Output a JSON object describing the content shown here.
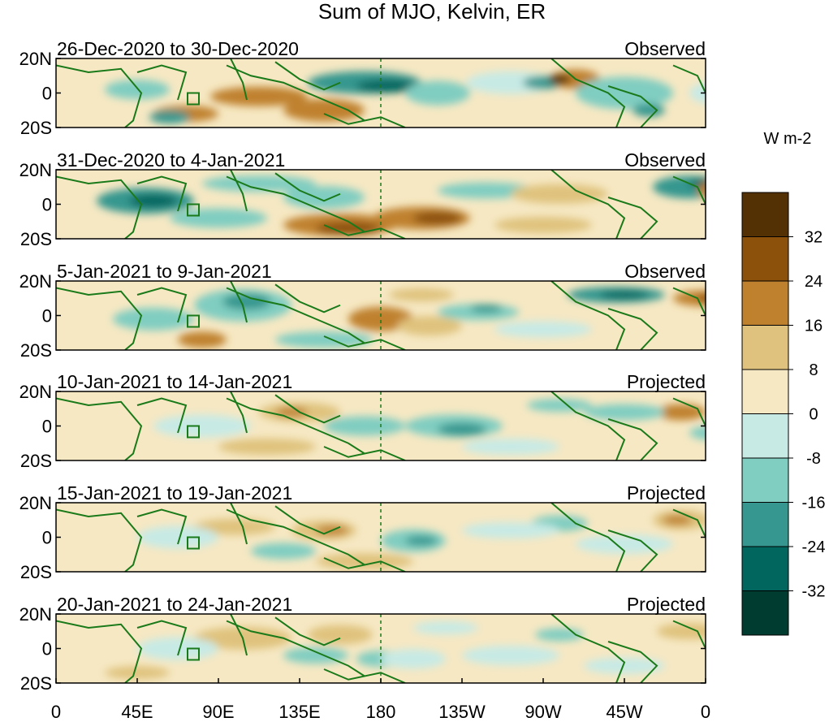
{
  "figure": {
    "title": "Sum of MJO, Kelvin, ER",
    "units": "W m-2"
  },
  "panels": [
    {
      "period": "26-Dec-2020 to 30-Dec-2020",
      "status": "Observed"
    },
    {
      "period": "31-Dec-2020 to 4-Jan-2021",
      "status": "Observed"
    },
    {
      "period": "5-Jan-2021 to 9-Jan-2021",
      "status": "Observed"
    },
    {
      "period": "10-Jan-2021 to 14-Jan-2021",
      "status": "Projected"
    },
    {
      "period": "15-Jan-2021 to 19-Jan-2021",
      "status": "Projected"
    },
    {
      "period": "20-Jan-2021 to 24-Jan-2021",
      "status": "Projected"
    }
  ],
  "lat_ticks": [
    "20N",
    "0",
    "20S"
  ],
  "lon_ticks": [
    "0",
    "45E",
    "90E",
    "135E",
    "180",
    "135W",
    "90W",
    "45W",
    "0"
  ],
  "colorbar": {
    "labels": [
      "32",
      "24",
      "16",
      "8",
      "0",
      "-8",
      "-16",
      "-24",
      "-32"
    ],
    "colors": [
      "#543005",
      "#8c510a",
      "#bf812d",
      "#dfc27d",
      "#f6e8c3",
      "#c7eae5",
      "#80cdc1",
      "#35978f",
      "#01665e",
      "#003c30"
    ]
  }
}
